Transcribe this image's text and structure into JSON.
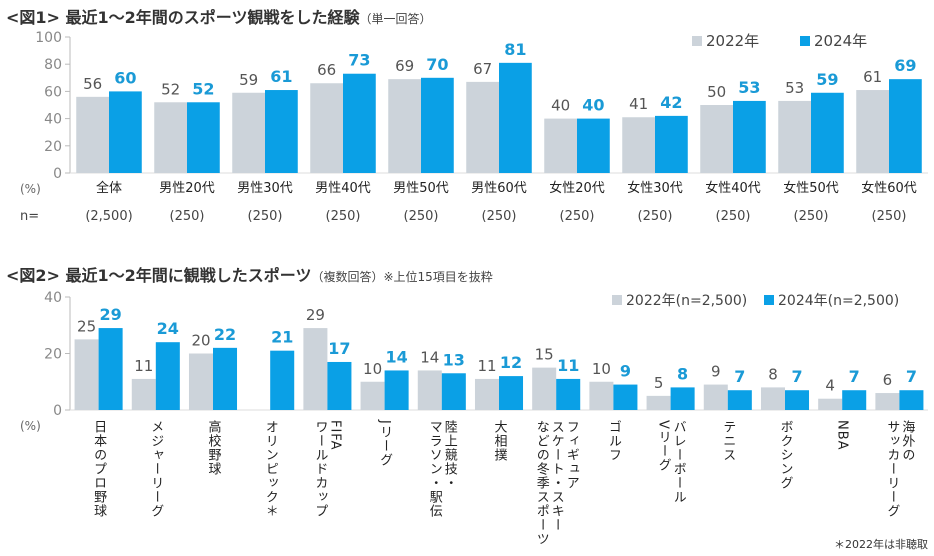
{
  "colors": {
    "y2022": "#ccd3da",
    "y2024": "#0aa0e6",
    "label2024": "#1a9ad6",
    "label2022": "#555555"
  },
  "chart_data": [
    {
      "type": "bar",
      "title": "<図1> 最近1～2年間のスポーツ観戦をした経験",
      "subtitle": "（単一回答）",
      "ylabel": "(%)",
      "ylim": [
        0,
        100
      ],
      "yticks": [
        0,
        20,
        40,
        60,
        80,
        100
      ],
      "categories": [
        "全体",
        "男性20代",
        "男性30代",
        "男性40代",
        "男性50代",
        "男性60代",
        "女性20代",
        "女性30代",
        "女性40代",
        "女性50代",
        "女性60代"
      ],
      "n_label": "n=",
      "n_values": [
        "(2,500)",
        "(250)",
        "(250)",
        "(250)",
        "(250)",
        "(250)",
        "(250)",
        "(250)",
        "(250)",
        "(250)",
        "(250)"
      ],
      "legend_position": "top-right",
      "series": [
        {
          "name": "2022年",
          "values": [
            56,
            52,
            59,
            66,
            69,
            67,
            40,
            41,
            50,
            53,
            61
          ]
        },
        {
          "name": "2024年",
          "values": [
            60,
            52,
            61,
            73,
            70,
            81,
            40,
            42,
            53,
            59,
            69
          ]
        }
      ]
    },
    {
      "type": "bar",
      "title": "<図2> 最近1～2年間に観戦したスポーツ",
      "subtitle": "（複数回答）※上位15項目を抜粋",
      "ylabel": "(%)",
      "ylim": [
        0,
        40
      ],
      "yticks": [
        0,
        20,
        40
      ],
      "categories": [
        "日本のプロ野球",
        "メジャーリーグ",
        "高校野球",
        "オリンピック＊",
        "FIFA\nワールドカップ",
        "Jリーグ",
        "陸上競技・\nマラソン・駅伝",
        "大相撲",
        "フィギュア\nスケート・スキー\nなどの冬季スポーツ",
        "ゴルフ",
        "バレーボール\nVリーグ",
        "テニス",
        "ボクシング",
        "NBA",
        "海外の\nサッカーリーグ"
      ],
      "legend_position": "top-right",
      "series": [
        {
          "name": "2022年(n=2,500)",
          "values": [
            25,
            11,
            20,
            null,
            29,
            10,
            14,
            11,
            15,
            10,
            5,
            9,
            8,
            4,
            6
          ]
        },
        {
          "name": "2024年(n=2,500)",
          "values": [
            29,
            24,
            22,
            21,
            17,
            14,
            13,
            12,
            11,
            9,
            8,
            7,
            7,
            7,
            7
          ]
        }
      ],
      "note": "＊2022年は非聴取"
    }
  ]
}
